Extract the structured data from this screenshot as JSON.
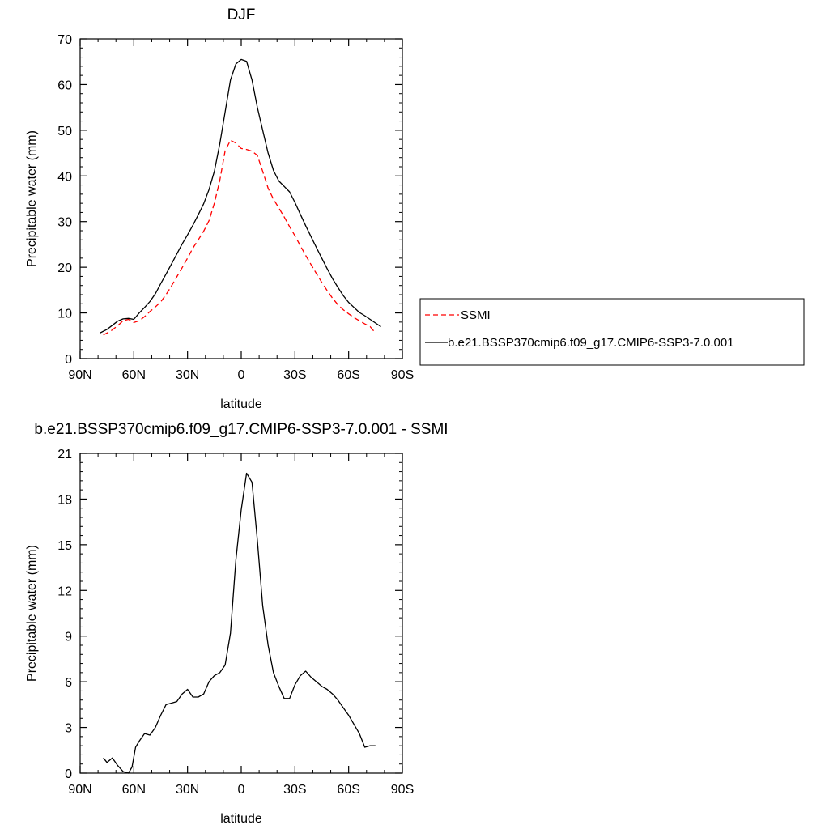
{
  "chart_data": [
    {
      "type": "line",
      "title": "DJF",
      "xlabel": "latitude",
      "ylabel": "Precipitable water (mm)",
      "xlim": [
        -90,
        90
      ],
      "ylim": [
        0,
        70
      ],
      "x_ticks": [
        -90,
        -60,
        -30,
        0,
        30,
        60,
        90
      ],
      "x_tick_labels": [
        "90N",
        "60N",
        "30N",
        "0",
        "30S",
        "60S",
        "90S"
      ],
      "y_ticks": [
        0,
        10,
        20,
        30,
        40,
        50,
        60,
        70
      ],
      "y_tick_labels": [
        "0",
        "10",
        "20",
        "30",
        "40",
        "50",
        "60",
        "70"
      ],
      "legend_position": "right",
      "series": [
        {
          "name": "SSMI",
          "color": "#ff0000",
          "dash": "dashed",
          "x": [
            -77,
            -73,
            -69,
            -66,
            -63,
            -60,
            -57,
            -54,
            -51,
            -48,
            -45,
            -42,
            -39,
            -36,
            -33,
            -30,
            -27,
            -24,
            -21,
            -18,
            -15,
            -12,
            -9,
            -6,
            -3,
            0,
            3,
            6,
            9,
            12,
            15,
            18,
            21,
            24,
            27,
            30,
            33,
            36,
            39,
            42,
            45,
            48,
            51,
            54,
            57,
            60,
            63,
            66,
            69,
            72,
            75
          ],
          "y": [
            5.2,
            6.0,
            7.2,
            8.3,
            8.6,
            7.9,
            8.3,
            9.2,
            10.3,
            11.3,
            12.4,
            14.0,
            15.9,
            17.9,
            19.9,
            22.0,
            24.2,
            26.0,
            27.9,
            30.2,
            34.0,
            39.0,
            45.5,
            47.8,
            47.2,
            46.0,
            45.8,
            45.4,
            44.5,
            41.0,
            37.3,
            34.9,
            33.0,
            31.0,
            28.9,
            26.9,
            24.7,
            22.6,
            20.6,
            18.6,
            16.7,
            14.9,
            13.2,
            11.8,
            10.7,
            9.8,
            9.0,
            8.3,
            7.6,
            7.0,
            5.6
          ]
        },
        {
          "name": "b.e21.BSSP370cmip6.f09_g17.CMIP6-SSP3-7.0.001",
          "color": "#000000",
          "dash": "solid",
          "x": [
            -79,
            -75,
            -72,
            -69,
            -66,
            -63,
            -60,
            -57,
            -54,
            -51,
            -48,
            -45,
            -42,
            -39,
            -36,
            -33,
            -30,
            -27,
            -24,
            -21,
            -18,
            -15,
            -12,
            -9,
            -6,
            -3,
            0,
            3,
            6,
            9,
            12,
            15,
            18,
            21,
            24,
            27,
            30,
            33,
            36,
            39,
            42,
            45,
            48,
            51,
            54,
            57,
            60,
            63,
            66,
            69,
            72,
            75,
            78
          ],
          "y": [
            5.6,
            6.4,
            7.3,
            8.2,
            8.7,
            8.8,
            8.6,
            10.0,
            11.2,
            12.5,
            14.2,
            16.4,
            18.5,
            20.7,
            22.9,
            25.1,
            27.1,
            29.2,
            31.5,
            33.9,
            37.0,
            41.0,
            47.0,
            54.0,
            61.0,
            64.5,
            65.5,
            65.1,
            61.0,
            55.0,
            50.0,
            45.0,
            41.2,
            38.9,
            37.7,
            36.5,
            34.2,
            31.6,
            29.1,
            26.7,
            24.3,
            22.0,
            19.7,
            17.5,
            15.6,
            13.8,
            12.3,
            11.2,
            10.1,
            9.4,
            8.6,
            7.8,
            7.0
          ]
        }
      ]
    },
    {
      "type": "line",
      "title": "b.e21.BSSP370cmip6.f09_g17.CMIP6-SSP3-7.0.001 - SSMI",
      "xlabel": "latitude",
      "ylabel": "Precipitable water (mm)",
      "xlim": [
        -90,
        90
      ],
      "ylim": [
        0,
        21
      ],
      "x_ticks": [
        -90,
        -60,
        -30,
        0,
        30,
        60,
        90
      ],
      "x_tick_labels": [
        "90N",
        "60N",
        "30N",
        "0",
        "30S",
        "60S",
        "90S"
      ],
      "y_ticks": [
        0,
        3,
        6,
        9,
        12,
        15,
        18,
        21
      ],
      "y_tick_labels": [
        "0",
        "3",
        "6",
        "9",
        "12",
        "15",
        "18",
        "21"
      ],
      "series": [
        {
          "color": "#000000",
          "dash": "solid",
          "x": [
            -77,
            -75,
            -72,
            -69,
            -66,
            -63,
            -61,
            -59,
            -57,
            -54,
            -51,
            -48,
            -45,
            -42,
            -39,
            -36,
            -33,
            -30,
            -27,
            -24,
            -21,
            -18,
            -15,
            -12,
            -9,
            -6,
            -3,
            0,
            3,
            6,
            9,
            12,
            15,
            18,
            21,
            24,
            27,
            30,
            33,
            36,
            39,
            42,
            45,
            48,
            51,
            54,
            57,
            60,
            63,
            66,
            69,
            72,
            75
          ],
          "y": [
            1.0,
            0.7,
            1.0,
            0.5,
            0.1,
            0.0,
            0.4,
            1.7,
            2.1,
            2.6,
            2.5,
            3.0,
            3.8,
            4.5,
            4.6,
            4.7,
            5.2,
            5.5,
            5.0,
            5.0,
            5.2,
            6.0,
            6.4,
            6.6,
            7.1,
            9.2,
            14.0,
            17.3,
            19.7,
            19.1,
            15.3,
            11.0,
            8.4,
            6.6,
            5.7,
            4.9,
            4.9,
            5.8,
            6.4,
            6.7,
            6.3,
            6.0,
            5.7,
            5.5,
            5.2,
            4.8,
            4.3,
            3.8,
            3.2,
            2.6,
            1.7,
            1.8,
            1.8
          ]
        }
      ]
    }
  ]
}
